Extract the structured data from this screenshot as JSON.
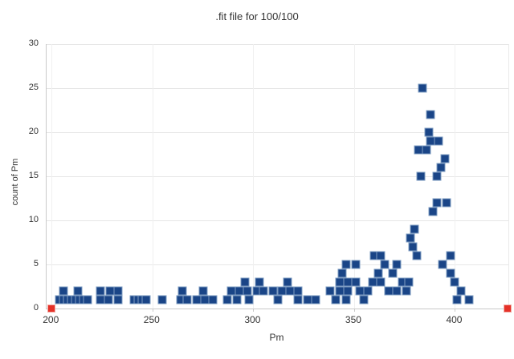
{
  "chart": {
    "title": ".fit file for 100/100",
    "x_axis_label": "Pm",
    "y_axis_label": "count of Pm"
  },
  "chart_data": {
    "type": "scatter",
    "title": ".fit file for 100/100",
    "xlabel": "Pm",
    "ylabel": "count of Pm",
    "xlim": [
      197.5,
      426.5
    ],
    "ylim": [
      0,
      30
    ],
    "x_ticks": [
      200,
      250,
      300,
      350,
      400
    ],
    "y_ticks": [
      0,
      5,
      10,
      15,
      20,
      25,
      30
    ],
    "grid": true,
    "legend": "none",
    "colors": {
      "marker_fill": "#1a4587",
      "marker_edge": "#7e9cc2",
      "endpoint_fill": "#e53128",
      "endpoint_edge": "#f2aba6",
      "gridline": "#e6e6e6",
      "axis": "#c9c9c9",
      "text": "#333333",
      "background": "#ffffff"
    },
    "series": [
      {
        "name": "count of Pm",
        "marker": "square",
        "size": 11,
        "points": [
          [
            204,
            1
          ],
          [
            206,
            1
          ],
          [
            206,
            2
          ],
          [
            208,
            1
          ],
          [
            210,
            1
          ],
          [
            212,
            1
          ],
          [
            213,
            2
          ],
          [
            214,
            1
          ],
          [
            216,
            1
          ],
          [
            218,
            1
          ],
          [
            224,
            1
          ],
          [
            224,
            2
          ],
          [
            228,
            1
          ],
          [
            229,
            2
          ],
          [
            233,
            1
          ],
          [
            233,
            2
          ],
          [
            241,
            1
          ],
          [
            243,
            1
          ],
          [
            245,
            1
          ],
          [
            247,
            1
          ],
          [
            255,
            1
          ],
          [
            264,
            1
          ],
          [
            265,
            2
          ],
          [
            267,
            1
          ],
          [
            272,
            1
          ],
          [
            275,
            2
          ],
          [
            276,
            1
          ],
          [
            280,
            1
          ],
          [
            287,
            1
          ],
          [
            289,
            2
          ],
          [
            292,
            1
          ],
          [
            293,
            2
          ],
          [
            296,
            3
          ],
          [
            297,
            2
          ],
          [
            298,
            1
          ],
          [
            302,
            2
          ],
          [
            303,
            3
          ],
          [
            305,
            2
          ],
          [
            310,
            2
          ],
          [
            312,
            1
          ],
          [
            314,
            2
          ],
          [
            317,
            3
          ],
          [
            318,
            2
          ],
          [
            322,
            1
          ],
          [
            322,
            2
          ],
          [
            327,
            1
          ],
          [
            331,
            1
          ],
          [
            338,
            2
          ],
          [
            341,
            1
          ],
          [
            343,
            2
          ],
          [
            343,
            3
          ],
          [
            344,
            4
          ],
          [
            346,
            1
          ],
          [
            346,
            5
          ],
          [
            347,
            2
          ],
          [
            347,
            3
          ],
          [
            351,
            3
          ],
          [
            351,
            5
          ],
          [
            353,
            2
          ],
          [
            355,
            1
          ],
          [
            357,
            2
          ],
          [
            359,
            3
          ],
          [
            360,
            6
          ],
          [
            362,
            4
          ],
          [
            363,
            3
          ],
          [
            363,
            6
          ],
          [
            365,
            5
          ],
          [
            367,
            2
          ],
          [
            369,
            4
          ],
          [
            371,
            2
          ],
          [
            371,
            5
          ],
          [
            374,
            3
          ],
          [
            376,
            2
          ],
          [
            377,
            3
          ],
          [
            378,
            8
          ],
          [
            379,
            7
          ],
          [
            380,
            9
          ],
          [
            381,
            6
          ],
          [
            382,
            18
          ],
          [
            383,
            15
          ],
          [
            384,
            25
          ],
          [
            386,
            18
          ],
          [
            387,
            20
          ],
          [
            388,
            19
          ],
          [
            388,
            22
          ],
          [
            389,
            11
          ],
          [
            391,
            12
          ],
          [
            391,
            15
          ],
          [
            392,
            19
          ],
          [
            393,
            16
          ],
          [
            394,
            5
          ],
          [
            395,
            17
          ],
          [
            396,
            12
          ],
          [
            398,
            4
          ],
          [
            398,
            6
          ],
          [
            400,
            3
          ],
          [
            401,
            1
          ],
          [
            403,
            2
          ],
          [
            407,
            1
          ]
        ]
      },
      {
        "name": "endpoints",
        "marker": "square",
        "size": 10,
        "points": [
          [
            200,
            0
          ],
          [
            426,
            0
          ]
        ]
      }
    ]
  }
}
